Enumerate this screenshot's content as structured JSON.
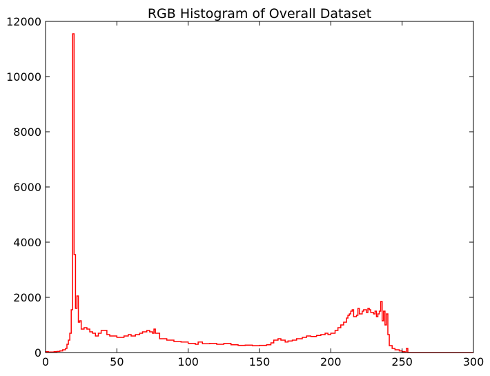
{
  "chart_data": {
    "type": "histogram",
    "title": "RGB Histogram of Overall Dataset",
    "xlabel": "",
    "ylabel": "",
    "xlim": [
      0,
      300
    ],
    "ylim": [
      0,
      12000
    ],
    "xticks": [
      0,
      50,
      100,
      150,
      200,
      250,
      300
    ],
    "yticks": [
      0,
      2000,
      4000,
      6000,
      8000,
      10000,
      12000
    ],
    "grid": false,
    "legend": "none",
    "line_color": "#ff0000",
    "series": [
      {
        "style": "step",
        "points": [
          [
            0,
            30
          ],
          [
            2,
            20
          ],
          [
            4,
            20
          ],
          [
            6,
            30
          ],
          [
            8,
            40
          ],
          [
            10,
            60
          ],
          [
            12,
            100
          ],
          [
            14,
            150
          ],
          [
            15,
            300
          ],
          [
            16,
            450
          ],
          [
            17,
            700
          ],
          [
            18,
            1550
          ],
          [
            19,
            11550
          ],
          [
            20,
            3550
          ],
          [
            21,
            1600
          ],
          [
            22,
            2050
          ],
          [
            23,
            1100
          ],
          [
            24,
            1150
          ],
          [
            25,
            850
          ],
          [
            27,
            900
          ],
          [
            29,
            850
          ],
          [
            31,
            750
          ],
          [
            33,
            700
          ],
          [
            35,
            600
          ],
          [
            37,
            700
          ],
          [
            39,
            800
          ],
          [
            41,
            800
          ],
          [
            43,
            650
          ],
          [
            45,
            600
          ],
          [
            50,
            550
          ],
          [
            55,
            600
          ],
          [
            58,
            650
          ],
          [
            60,
            600
          ],
          [
            63,
            650
          ],
          [
            66,
            700
          ],
          [
            68,
            750
          ],
          [
            71,
            800
          ],
          [
            73,
            750
          ],
          [
            75,
            700
          ],
          [
            76,
            850
          ],
          [
            77,
            700
          ],
          [
            80,
            500
          ],
          [
            85,
            450
          ],
          [
            90,
            400
          ],
          [
            95,
            380
          ],
          [
            100,
            330
          ],
          [
            105,
            300
          ],
          [
            107,
            380
          ],
          [
            110,
            320
          ],
          [
            115,
            330
          ],
          [
            120,
            300
          ],
          [
            125,
            330
          ],
          [
            130,
            280
          ],
          [
            135,
            260
          ],
          [
            140,
            270
          ],
          [
            145,
            250
          ],
          [
            150,
            260
          ],
          [
            155,
            280
          ],
          [
            158,
            350
          ],
          [
            160,
            450
          ],
          [
            163,
            500
          ],
          [
            165,
            450
          ],
          [
            168,
            380
          ],
          [
            170,
            420
          ],
          [
            173,
            450
          ],
          [
            176,
            500
          ],
          [
            180,
            550
          ],
          [
            183,
            600
          ],
          [
            186,
            580
          ],
          [
            190,
            620
          ],
          [
            193,
            650
          ],
          [
            196,
            700
          ],
          [
            198,
            650
          ],
          [
            200,
            700
          ],
          [
            203,
            800
          ],
          [
            205,
            900
          ],
          [
            207,
            1000
          ],
          [
            209,
            1100
          ],
          [
            211,
            1250
          ],
          [
            212,
            1350
          ],
          [
            213,
            1400
          ],
          [
            214,
            1500
          ],
          [
            215,
            1550
          ],
          [
            216,
            1300
          ],
          [
            218,
            1350
          ],
          [
            219,
            1600
          ],
          [
            220,
            1400
          ],
          [
            222,
            1500
          ],
          [
            223,
            1550
          ],
          [
            225,
            1450
          ],
          [
            226,
            1600
          ],
          [
            227,
            1550
          ],
          [
            228,
            1450
          ],
          [
            230,
            1400
          ],
          [
            231,
            1500
          ],
          [
            232,
            1300
          ],
          [
            233,
            1400
          ],
          [
            234,
            1500
          ],
          [
            235,
            1850
          ],
          [
            236,
            1150
          ],
          [
            237,
            1500
          ],
          [
            238,
            1000
          ],
          [
            239,
            1400
          ],
          [
            240,
            650
          ],
          [
            241,
            250
          ],
          [
            243,
            150
          ],
          [
            245,
            100
          ],
          [
            248,
            60
          ],
          [
            250,
            30
          ],
          [
            252,
            20
          ],
          [
            253,
            150
          ],
          [
            254,
            0
          ],
          [
            300,
            0
          ]
        ]
      }
    ]
  }
}
